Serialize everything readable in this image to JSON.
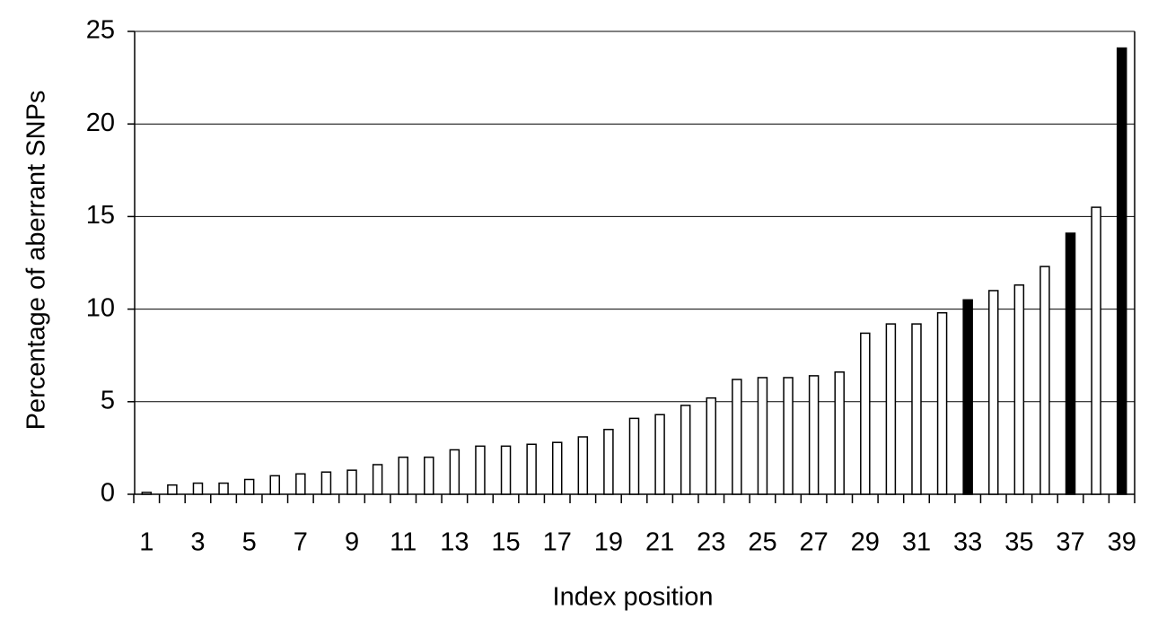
{
  "chart_data": {
    "type": "bar",
    "x_label": "Index position",
    "y_label": "Percentage of aberrant SNPs",
    "categories": [
      "1",
      null,
      "3",
      null,
      "5",
      null,
      "7",
      null,
      "9",
      null,
      "11",
      null,
      "13",
      null,
      "15",
      null,
      "17",
      null,
      "19",
      null,
      "21",
      null,
      "23",
      null,
      "25",
      null,
      "27",
      null,
      "29",
      null,
      "31",
      null,
      "33",
      null,
      "35",
      null,
      "37",
      null,
      "39"
    ],
    "values": [
      0.1,
      0.5,
      0.6,
      0.6,
      0.8,
      1.0,
      1.1,
      1.2,
      1.3,
      1.6,
      2.0,
      2.0,
      2.4,
      2.6,
      2.6,
      2.7,
      2.8,
      3.1,
      3.5,
      4.1,
      4.3,
      4.8,
      5.2,
      6.2,
      6.3,
      6.3,
      6.4,
      6.6,
      8.7,
      9.2,
      9.2,
      9.8,
      10.5,
      11.0,
      11.3,
      12.3,
      14.1,
      15.5,
      24.1
    ],
    "colors": [
      "#ffffff",
      "#ffffff",
      "#ffffff",
      "#ffffff",
      "#ffffff",
      "#ffffff",
      "#ffffff",
      "#ffffff",
      "#ffffff",
      "#ffffff",
      "#ffffff",
      "#ffffff",
      "#ffffff",
      "#ffffff",
      "#ffffff",
      "#ffffff",
      "#ffffff",
      "#ffffff",
      "#ffffff",
      "#ffffff",
      "#ffffff",
      "#ffffff",
      "#ffffff",
      "#ffffff",
      "#ffffff",
      "#ffffff",
      "#ffffff",
      "#ffffff",
      "#ffffff",
      "#ffffff",
      "#ffffff",
      "#ffffff",
      "#000000",
      "#ffffff",
      "#ffffff",
      "#ffffff",
      "#000000",
      "#ffffff",
      "#000000"
    ],
    "ylim": [
      0,
      25
    ],
    "yticks": [
      0,
      5,
      10,
      15,
      20,
      25
    ],
    "grid": true
  }
}
